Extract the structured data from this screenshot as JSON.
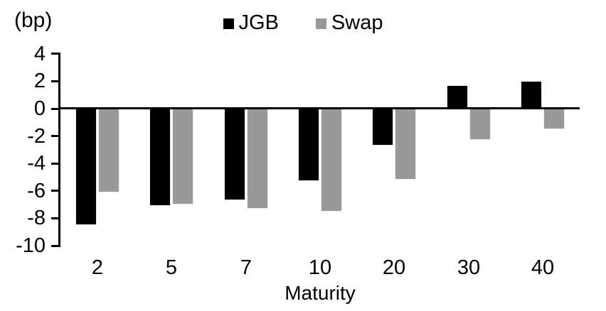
{
  "chart_data": {
    "type": "bar",
    "title": "",
    "unit_label": "(bp)",
    "xlabel": "Maturity",
    "ylabel": "",
    "categories": [
      "2",
      "5",
      "7",
      "10",
      "20",
      "30",
      "40"
    ],
    "series": [
      {
        "name": "JGB",
        "color": "#000000",
        "values": [
          -8.5,
          -7.1,
          -6.7,
          -5.3,
          -2.7,
          1.7,
          2.0
        ]
      },
      {
        "name": "Swap",
        "color": "#999999",
        "values": [
          -6.1,
          -7.0,
          -7.3,
          -7.5,
          -5.2,
          -2.3,
          -1.5
        ]
      }
    ],
    "yticks": [
      4,
      2,
      0,
      -2,
      -4,
      -6,
      -8,
      -10
    ],
    "ylim": [
      -10,
      4
    ],
    "grid": false,
    "legend_position": "top-center"
  }
}
